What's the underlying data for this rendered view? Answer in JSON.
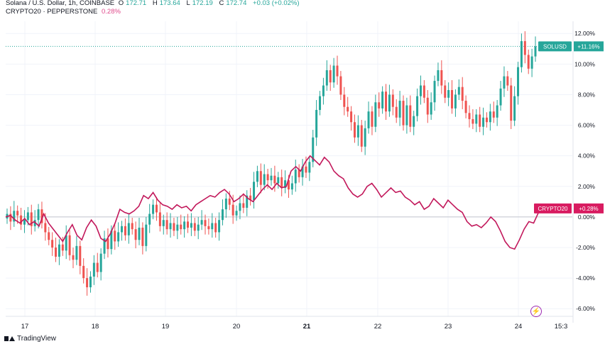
{
  "legend": {
    "symbol_line": "Solana / U.S. Dollar, 1h, COINBASE",
    "o_label": "O",
    "o_value": "172.71",
    "h_label": "H",
    "h_value": "173.64",
    "l_label": "L",
    "l_value": "172.19",
    "c_label": "C",
    "c_value": "172.74",
    "change": "+0.03 (+0.02%)",
    "compare_label": "CRYPTO20 · PEPPERSTONE",
    "compare_value": "0.28%"
  },
  "branding": {
    "name": "TradingView"
  },
  "colors": {
    "up": "#26a69a",
    "down": "#ef5350",
    "compare": "#c2185b",
    "badge_up": "#26a69a",
    "badge_compare": "#d81b60",
    "grid": "#f0f3fa"
  },
  "icons": {
    "flash": "lightning-icon",
    "logo": "tradingview-logo-icon"
  },
  "chart_data": {
    "type": "line",
    "x_tick_labels": [
      "17",
      "18",
      "19",
      "20",
      "21",
      "22",
      "23",
      "24",
      "15:3"
    ],
    "y_tick_labels": [
      "12.00%",
      "10.00%",
      "8.00%",
      "6.00%",
      "4.00%",
      "2.00%",
      "0.00%",
      "-2.00%",
      "-4.00%",
      "-6.00%"
    ],
    "ylim": [
      -6.5,
      12.8
    ],
    "grid": true,
    "series": [
      {
        "name": "SOLUSD",
        "badge": "SOLUSD",
        "badge_value": "+11.16%",
        "last": 11.16,
        "style": "candles",
        "closes": [
          0.2,
          -0.3,
          0.4,
          0.1,
          -0.5,
          -0.2,
          0.3,
          -0.6,
          -0.2,
          0.5,
          -0.4,
          -1.0,
          -1.5,
          -2.0,
          -2.6,
          -1.8,
          -2.2,
          -1.2,
          -2.5,
          -2.8,
          -1.9,
          -3.2,
          -4.0,
          -4.6,
          -3.9,
          -3.0,
          -3.6,
          -2.4,
          -1.4,
          -2.1,
          -0.9,
          -1.6,
          -1.0,
          -0.6,
          -1.2,
          -0.4,
          -0.8,
          -1.5,
          -0.7,
          -1.9,
          -0.5,
          0.2,
          0.8,
          0.3,
          -0.6,
          -0.2,
          -0.8,
          -0.4,
          -0.9,
          -0.5,
          -0.8,
          -0.3,
          -0.7,
          -0.4,
          -0.9,
          -0.5,
          -0.2,
          -0.6,
          -0.8,
          -0.4,
          -1.0,
          -0.2,
          0.5,
          1.2,
          0.8,
          0.1,
          0.4,
          0.9,
          0.6,
          1.4,
          1.1,
          2.3,
          3.0,
          2.1,
          2.8,
          2.4,
          2.7,
          2.2,
          2.6,
          1.9,
          2.4,
          1.8,
          2.2,
          3.1,
          2.6,
          3.3,
          2.9,
          3.6,
          5.2,
          7.0,
          7.9,
          8.6,
          9.6,
          8.8,
          9.9,
          9.2,
          8.0,
          7.2,
          6.9,
          6.2,
          5.2,
          6.0,
          4.6,
          5.8,
          6.9,
          5.9,
          7.5,
          7.1,
          8.2,
          6.9,
          8.0,
          7.2,
          6.5,
          7.6,
          6.0,
          7.3,
          5.9,
          6.6,
          7.9,
          8.6,
          7.8,
          6.7,
          7.5,
          8.9,
          9.6,
          8.6,
          7.8,
          8.3,
          7.1,
          8.0,
          8.5,
          7.6,
          6.8,
          6.4,
          6.1,
          6.7,
          5.9,
          6.5,
          6.2,
          6.9,
          6.5,
          7.3,
          8.4,
          9.2,
          8.6,
          6.3,
          7.9,
          9.8,
          11.5,
          10.6,
          9.7,
          10.5,
          11.16
        ]
      },
      {
        "name": "CRYPTO20",
        "badge": "CRYPTO20",
        "badge_value": "+0.28%",
        "last": 0.28,
        "style": "line",
        "values": [
          0.0,
          0.1,
          -0.2,
          -0.4,
          -0.1,
          -0.5,
          -0.3,
          -0.6,
          0.2,
          -0.4,
          -0.8,
          -1.2,
          -1.6,
          -1.0,
          -0.5,
          -1.2,
          -1.5,
          -0.7,
          -0.2,
          -0.6,
          -1.4,
          -1.6,
          -1.1,
          -0.4,
          0.5,
          0.3,
          0.2,
          0.4,
          0.7,
          1.4,
          1.2,
          1.6,
          1.1,
          0.8,
          0.7,
          0.5,
          0.8,
          0.6,
          0.7,
          0.4,
          0.8,
          1.0,
          1.2,
          1.4,
          1.3,
          1.6,
          1.8,
          1.5,
          1.0,
          1.2,
          1.5,
          1.2,
          1.0,
          1.4,
          1.8,
          2.1,
          1.8,
          2.2,
          1.9,
          2.0,
          3.0,
          3.3,
          3.0,
          3.6,
          4.0,
          3.7,
          3.4,
          3.9,
          3.6,
          3.0,
          2.7,
          2.5,
          1.9,
          1.5,
          1.3,
          1.5,
          2.0,
          2.2,
          1.8,
          1.3,
          1.6,
          1.9,
          1.6,
          1.7,
          1.3,
          1.1,
          0.8,
          1.0,
          0.5,
          0.7,
          1.2,
          0.9,
          0.6,
          1.1,
          0.8,
          0.5,
          0.3,
          -0.3,
          -0.6,
          -0.5,
          -0.7,
          -0.4,
          0.0,
          -0.3,
          -0.9,
          -1.6,
          -2.0,
          -2.1,
          -1.5,
          -0.8,
          -0.3,
          -0.4,
          0.28
        ],
        "x_end_fraction": 0.915
      }
    ]
  }
}
